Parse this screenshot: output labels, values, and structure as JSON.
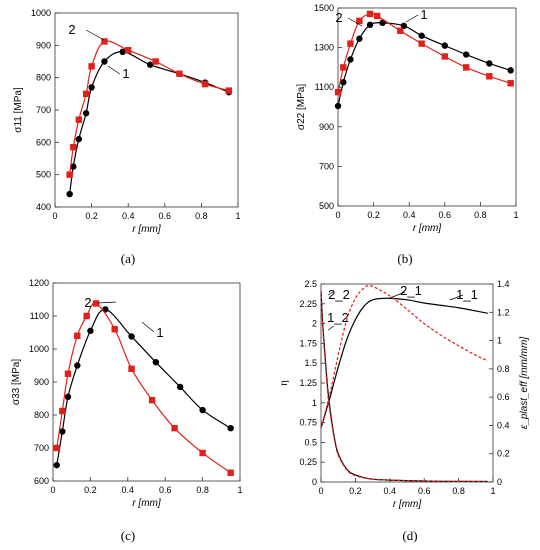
{
  "figure": {
    "captions": [
      "(a)",
      "(b)",
      "(c)",
      "(d)"
    ]
  },
  "colors": {
    "curve1": "#000000",
    "curve2": "#e0201a"
  },
  "chart_data": [
    {
      "type": "line",
      "caption": "(a)",
      "xlabel": "r [mm]",
      "ylabel": "σ11 [MPa]",
      "xlim": [
        0,
        1
      ],
      "ylim": [
        400,
        1000
      ],
      "xticks": [
        "0",
        "0.2",
        "0.4",
        "0.6",
        "0.8",
        "1"
      ],
      "yticks": [
        "400",
        "500",
        "600",
        "700",
        "800",
        "900",
        "1000"
      ],
      "annotations": [
        "2",
        "1"
      ],
      "series": [
        {
          "name": "1",
          "color": "#000000",
          "marker": "circle",
          "x": [
            0.08,
            0.1,
            0.13,
            0.17,
            0.2,
            0.27,
            0.37,
            0.52,
            0.68,
            0.82,
            0.95
          ],
          "y": [
            440,
            525,
            610,
            690,
            770,
            850,
            880,
            840,
            812,
            785,
            755
          ]
        },
        {
          "name": "2",
          "color": "#e0201a",
          "marker": "square",
          "x": [
            0.08,
            0.1,
            0.13,
            0.17,
            0.2,
            0.27,
            0.4,
            0.55,
            0.68,
            0.82,
            0.95
          ],
          "y": [
            500,
            585,
            670,
            750,
            835,
            912,
            885,
            850,
            812,
            780,
            760
          ]
        }
      ]
    },
    {
      "type": "line",
      "caption": "(b)",
      "xlabel": "r [mm]",
      "ylabel": "σ22 [MPa]",
      "xlim": [
        0,
        1
      ],
      "ylim": [
        500,
        1500
      ],
      "xticks": [
        "0",
        "0.2",
        "0.4",
        "0.6",
        "0.8",
        "1"
      ],
      "yticks": [
        "500",
        "700",
        "900",
        "1100",
        "1300",
        "1500"
      ],
      "annotations": [
        "2",
        "1"
      ],
      "series": [
        {
          "name": "1",
          "color": "#000000",
          "marker": "circle",
          "x": [
            0,
            0.03,
            0.07,
            0.12,
            0.18,
            0.25,
            0.37,
            0.47,
            0.6,
            0.72,
            0.85,
            0.97
          ],
          "y": [
            1005,
            1125,
            1240,
            1345,
            1415,
            1425,
            1410,
            1360,
            1310,
            1265,
            1220,
            1185
          ]
        },
        {
          "name": "2",
          "color": "#e0201a",
          "marker": "square",
          "x": [
            0,
            0.03,
            0.07,
            0.12,
            0.18,
            0.22,
            0.35,
            0.47,
            0.6,
            0.72,
            0.85,
            0.97
          ],
          "y": [
            1075,
            1200,
            1320,
            1435,
            1470,
            1460,
            1385,
            1320,
            1255,
            1200,
            1155,
            1120
          ]
        }
      ]
    },
    {
      "type": "line",
      "caption": "(c)",
      "xlabel": "r [mm]",
      "ylabel": "σ33 [MPa]",
      "xlim": [
        0,
        1
      ],
      "ylim": [
        600,
        1200
      ],
      "xticks": [
        "0",
        "0.2",
        "0.4",
        "0.6",
        "0.8",
        "1"
      ],
      "yticks": [
        "600",
        "700",
        "800",
        "900",
        "1000",
        "1100",
        "1200"
      ],
      "annotations": [
        "2",
        "1"
      ],
      "series": [
        {
          "name": "1",
          "color": "#000000",
          "marker": "circle",
          "x": [
            0.02,
            0.05,
            0.08,
            0.13,
            0.2,
            0.28,
            0.42,
            0.55,
            0.68,
            0.8,
            0.95
          ],
          "y": [
            648,
            750,
            855,
            950,
            1055,
            1120,
            1038,
            960,
            885,
            815,
            760
          ]
        },
        {
          "name": "2",
          "color": "#e0201a",
          "marker": "square",
          "x": [
            0.02,
            0.05,
            0.08,
            0.13,
            0.18,
            0.23,
            0.33,
            0.42,
            0.53,
            0.65,
            0.8,
            0.95
          ],
          "y": [
            700,
            812,
            925,
            1040,
            1100,
            1138,
            1060,
            940,
            845,
            760,
            685,
            625
          ]
        }
      ]
    },
    {
      "type": "line",
      "caption": "(d)",
      "xlabel": "r [mm]",
      "ylabel": "η",
      "ylabel_right": "ε_plast_eff [mm/mm]",
      "xlim": [
        0,
        1
      ],
      "ylim": [
        0,
        2.5
      ],
      "ylim_right": [
        0,
        1.4
      ],
      "xticks": [
        "0",
        "0.2",
        "0.4",
        "0.6",
        "0.8",
        "1"
      ],
      "yticks": [
        "0",
        "0.25",
        "0.5",
        "0.75",
        "1",
        "1.25",
        "1.5",
        "1.75",
        "2",
        "2.25",
        "2.5"
      ],
      "yticks_right": [
        "0",
        "0.2",
        "0.4",
        "0.6",
        "0.8",
        "1",
        "1.2",
        "1.4"
      ],
      "annotations": [
        "2_2",
        "2_1",
        "1_1",
        "1_2"
      ],
      "series": [
        {
          "name": "1_1",
          "color": "#000000",
          "style": "solid",
          "x": [
            0,
            0.05,
            0.1,
            0.15,
            0.2,
            0.25,
            0.3,
            0.38,
            0.5,
            0.6,
            0.7,
            0.8,
            0.9,
            0.97
          ],
          "y": [
            0.68,
            1.05,
            1.45,
            1.8,
            2.05,
            2.22,
            2.3,
            2.32,
            2.3,
            2.26,
            2.23,
            2.2,
            2.16,
            2.13
          ]
        },
        {
          "name": "2_1",
          "color": "#e0201a",
          "style": "dashed",
          "x": [
            0,
            0.05,
            0.1,
            0.15,
            0.2,
            0.25,
            0.28,
            0.32,
            0.4,
            0.5,
            0.6,
            0.7,
            0.8,
            0.9,
            0.97
          ],
          "y": [
            0.68,
            1.1,
            1.6,
            2.05,
            2.32,
            2.45,
            2.48,
            2.45,
            2.35,
            2.18,
            2.0,
            1.85,
            1.72,
            1.6,
            1.53
          ]
        },
        {
          "name": "1_2",
          "color": "#000000",
          "style": "solid",
          "axis": "right",
          "x": [
            0,
            0.01,
            0.02,
            0.04,
            0.06,
            0.08,
            0.1,
            0.15,
            0.2,
            0.3,
            0.5,
            0.7,
            0.97
          ],
          "y": [
            1.35,
            1.12,
            0.95,
            0.65,
            0.45,
            0.3,
            0.2,
            0.09,
            0.05,
            0.02,
            0.01,
            0.005,
            0.004
          ]
        },
        {
          "name": "2_2",
          "color": "#e0201a",
          "style": "dashed",
          "axis": "right",
          "x": [
            0,
            0.01,
            0.02,
            0.04,
            0.06,
            0.08,
            0.1,
            0.15,
            0.2,
            0.3,
            0.5,
            0.7,
            0.97
          ],
          "y": [
            1.35,
            1.1,
            0.92,
            0.62,
            0.43,
            0.29,
            0.19,
            0.085,
            0.045,
            0.02,
            0.01,
            0.005,
            0.004
          ]
        }
      ]
    }
  ]
}
